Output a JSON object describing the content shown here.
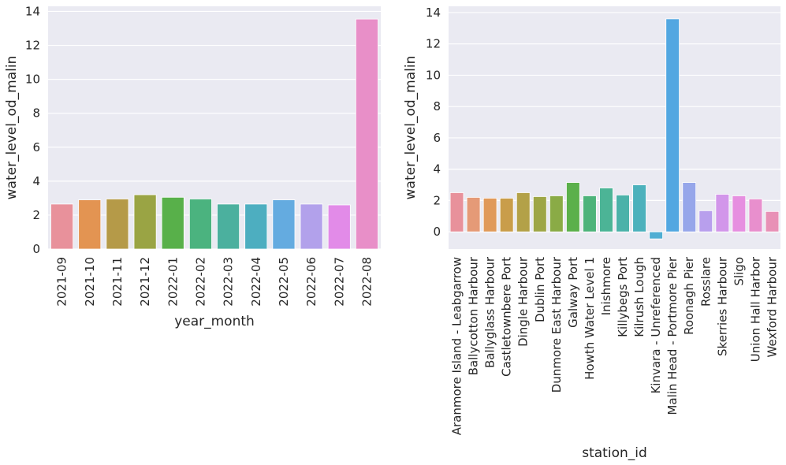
{
  "chart_data": [
    {
      "type": "bar",
      "xlabel": "year_month",
      "ylabel": "water_level_od_malin",
      "ylim": [
        0,
        14.3
      ],
      "yticks": [
        0,
        2,
        4,
        6,
        8,
        10,
        12,
        14
      ],
      "grid": true,
      "categories": [
        "2021-09",
        "2021-10",
        "2021-11",
        "2021-12",
        "2022-01",
        "2022-02",
        "2022-03",
        "2022-04",
        "2022-05",
        "2022-06",
        "2022-07",
        "2022-08"
      ],
      "values": [
        2.65,
        2.9,
        2.95,
        3.2,
        3.05,
        2.95,
        2.65,
        2.65,
        2.9,
        2.65,
        2.6,
        13.55
      ],
      "colors": [
        "#e8919b",
        "#e39452",
        "#b59a48",
        "#9aa444",
        "#58b04a",
        "#4bb37f",
        "#4bb09e",
        "#4daec0",
        "#64abe0",
        "#b2a1eb",
        "#e28be8",
        "#e88fc8"
      ]
    },
    {
      "type": "bar",
      "xlabel": "station_id",
      "ylabel": "water_level_od_malin",
      "ylim": [
        -1.1,
        14.4
      ],
      "yticks": [
        0,
        2,
        4,
        6,
        8,
        10,
        12,
        14
      ],
      "grid": true,
      "categories": [
        "Aranmore Island - Leabgarrow",
        "Ballycotton Harbour",
        "Ballyglass Harbour",
        "Castletownbere Port",
        "Dingle Harbour",
        "Dublin Port",
        "Dunmore East Harbour",
        "Galway Port",
        "Howth Water Level 1",
        "Inishmore",
        "Killybegs Port",
        "Kilrush Lough",
        "Kinvara - Unreferenced",
        "Malin Head - Portmore Pier",
        "Roonagh Pier",
        "Rosslare",
        "Skerries Harbour",
        "Sligo",
        "Union Hall Harbor",
        "Wexford Harbour"
      ],
      "values": [
        2.5,
        2.2,
        2.15,
        2.15,
        2.5,
        2.25,
        2.3,
        3.15,
        2.3,
        2.8,
        2.35,
        3.0,
        -0.45,
        13.6,
        3.15,
        1.35,
        2.4,
        2.3,
        2.1,
        1.3
      ],
      "colors": [
        "#e8919b",
        "#e59a77",
        "#e09a5a",
        "#c99d4a",
        "#b3a148",
        "#9ea646",
        "#8aab46",
        "#5bb04b",
        "#4db37a",
        "#4cb496",
        "#4bb2a9",
        "#4cb1bc",
        "#50aed3",
        "#52a7e1",
        "#96a6ea",
        "#b89fed",
        "#d296ea",
        "#e68fe0",
        "#e88fcd",
        "#e891b6"
      ]
    }
  ]
}
